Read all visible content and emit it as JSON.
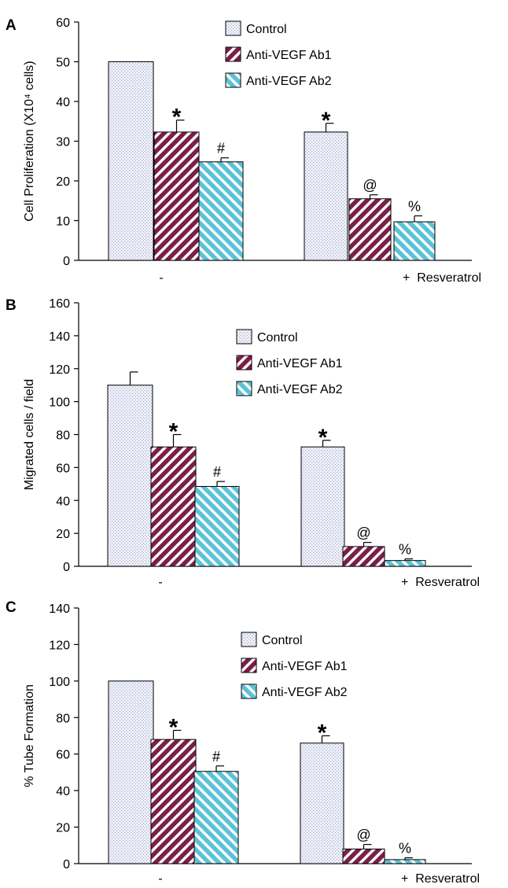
{
  "legend": [
    "Control",
    "Anti-VEGF Ab1",
    "Anti-VEGF Ab2"
  ],
  "colors": {
    "control_fill": "#eceef7",
    "control_dots": "#a6a9c8",
    "ab1_fill": "#7a1f47",
    "ab1_stripe": "#ffffff",
    "ab2_fill": "#5bc2d8",
    "ab2_stripe": "#ffffff",
    "axis": "#000000"
  },
  "x_group_labels": [
    "-",
    "+  Resveratrol"
  ],
  "chart_data": [
    {
      "panel": "A",
      "type": "bar",
      "ylabel": "Cell Proliferation (X10⁴ cells)",
      "ylim": [
        0,
        60
      ],
      "yticks": [
        0,
        10,
        20,
        30,
        40,
        50,
        60
      ],
      "categories": [
        "-",
        "+  Resveratrol"
      ],
      "series": [
        {
          "name": "Control",
          "values": [
            50,
            32.3
          ],
          "errors": [
            0,
            2.2
          ],
          "marks": [
            "",
            "*"
          ]
        },
        {
          "name": "Anti-VEGF Ab1",
          "values": [
            32.3,
            15.5
          ],
          "errors": [
            3.0,
            1.0
          ],
          "marks": [
            "*",
            "@"
          ]
        },
        {
          "name": "Anti-VEGF Ab2",
          "values": [
            24.8,
            9.7
          ],
          "errors": [
            1.0,
            1.5
          ],
          "marks": [
            "#",
            "%"
          ]
        }
      ]
    },
    {
      "panel": "B",
      "type": "bar",
      "ylabel": "Migrated cells / field",
      "ylim": [
        0,
        160
      ],
      "yticks": [
        0,
        20,
        40,
        60,
        80,
        100,
        120,
        140,
        160
      ],
      "categories": [
        "-",
        "+  Resveratrol"
      ],
      "series": [
        {
          "name": "Control",
          "values": [
            110,
            72.5
          ],
          "errors": [
            8.0,
            4.0
          ],
          "marks": [
            "",
            "*"
          ]
        },
        {
          "name": "Anti-VEGF Ab1",
          "values": [
            72.5,
            12
          ],
          "errors": [
            7.5,
            2.5
          ],
          "marks": [
            "*",
            "@"
          ]
        },
        {
          "name": "Anti-VEGF Ab2",
          "values": [
            48.5,
            3.5
          ],
          "errors": [
            3.0,
            1.0
          ],
          "marks": [
            "#",
            "%"
          ]
        }
      ]
    },
    {
      "panel": "C",
      "type": "bar",
      "ylabel": "% Tube Formation",
      "ylim": [
        0,
        140
      ],
      "yticks": [
        0,
        20,
        40,
        60,
        80,
        100,
        120,
        140
      ],
      "categories": [
        "-",
        "+  Resveratrol"
      ],
      "series": [
        {
          "name": "Control",
          "values": [
            100,
            66
          ],
          "errors": [
            0,
            4.0
          ],
          "marks": [
            "",
            "*"
          ]
        },
        {
          "name": "Anti-VEGF Ab1",
          "values": [
            68,
            8
          ],
          "errors": [
            5.0,
            2.5
          ],
          "marks": [
            "*",
            "@"
          ]
        },
        {
          "name": "Anti-VEGF Ab2",
          "values": [
            50.5,
            2.2
          ],
          "errors": [
            3.0,
            1.0
          ],
          "marks": [
            "#",
            "%"
          ]
        }
      ]
    }
  ]
}
